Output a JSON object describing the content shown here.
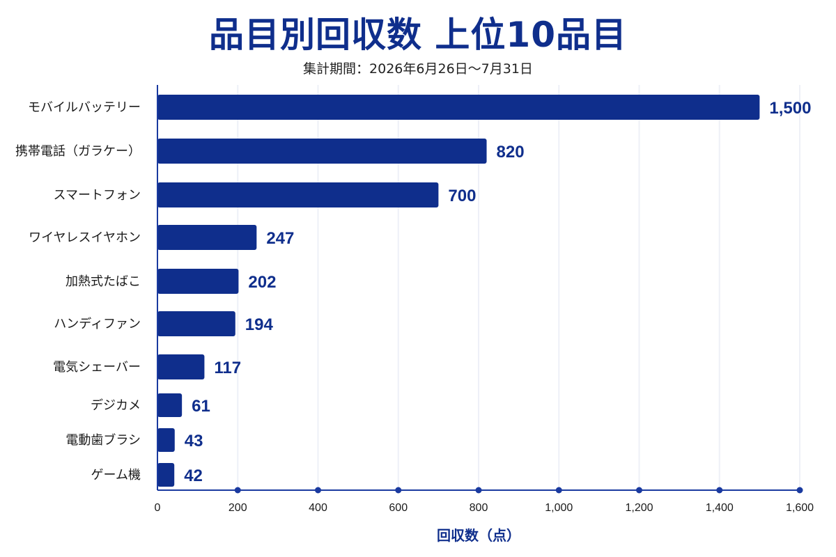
{
  "colors": {
    "bar": "#0f2e8c",
    "axis": "#1a3aa0",
    "grid": "#eef0f7",
    "title": "#0f2e8c"
  },
  "chart_data": {
    "type": "bar",
    "orientation": "horizontal",
    "title": "品目別回収数 上位10品目",
    "subtitle": "集計期間：2026年6月26日～7月31日",
    "xlabel": "回収数（点）",
    "ylabel": "",
    "xlim": [
      0,
      1600
    ],
    "grid": true,
    "categories": [
      "モバイルバッテリー",
      "携帯電話（ガラケー）",
      "スマートフォン",
      "ワイヤレスイヤホン",
      "加熱式たばこ",
      "ハンディファン",
      "電気シェーバー",
      "デジカメ",
      "電動歯ブラシ",
      "ゲーム機"
    ],
    "values": [
      1500,
      820,
      700,
      247,
      202,
      194,
      117,
      61,
      43,
      42
    ],
    "value_labels": [
      "1,500",
      "820",
      "700",
      "247",
      "202",
      "194",
      "117",
      "61",
      "43",
      "42"
    ],
    "ticks": [
      0,
      200,
      400,
      600,
      800,
      1000,
      1200,
      1400,
      1600
    ],
    "tick_labels": [
      "0",
      "200",
      "400",
      "600",
      "800",
      "1,000",
      "1,200",
      "1,400",
      "1,600"
    ]
  }
}
